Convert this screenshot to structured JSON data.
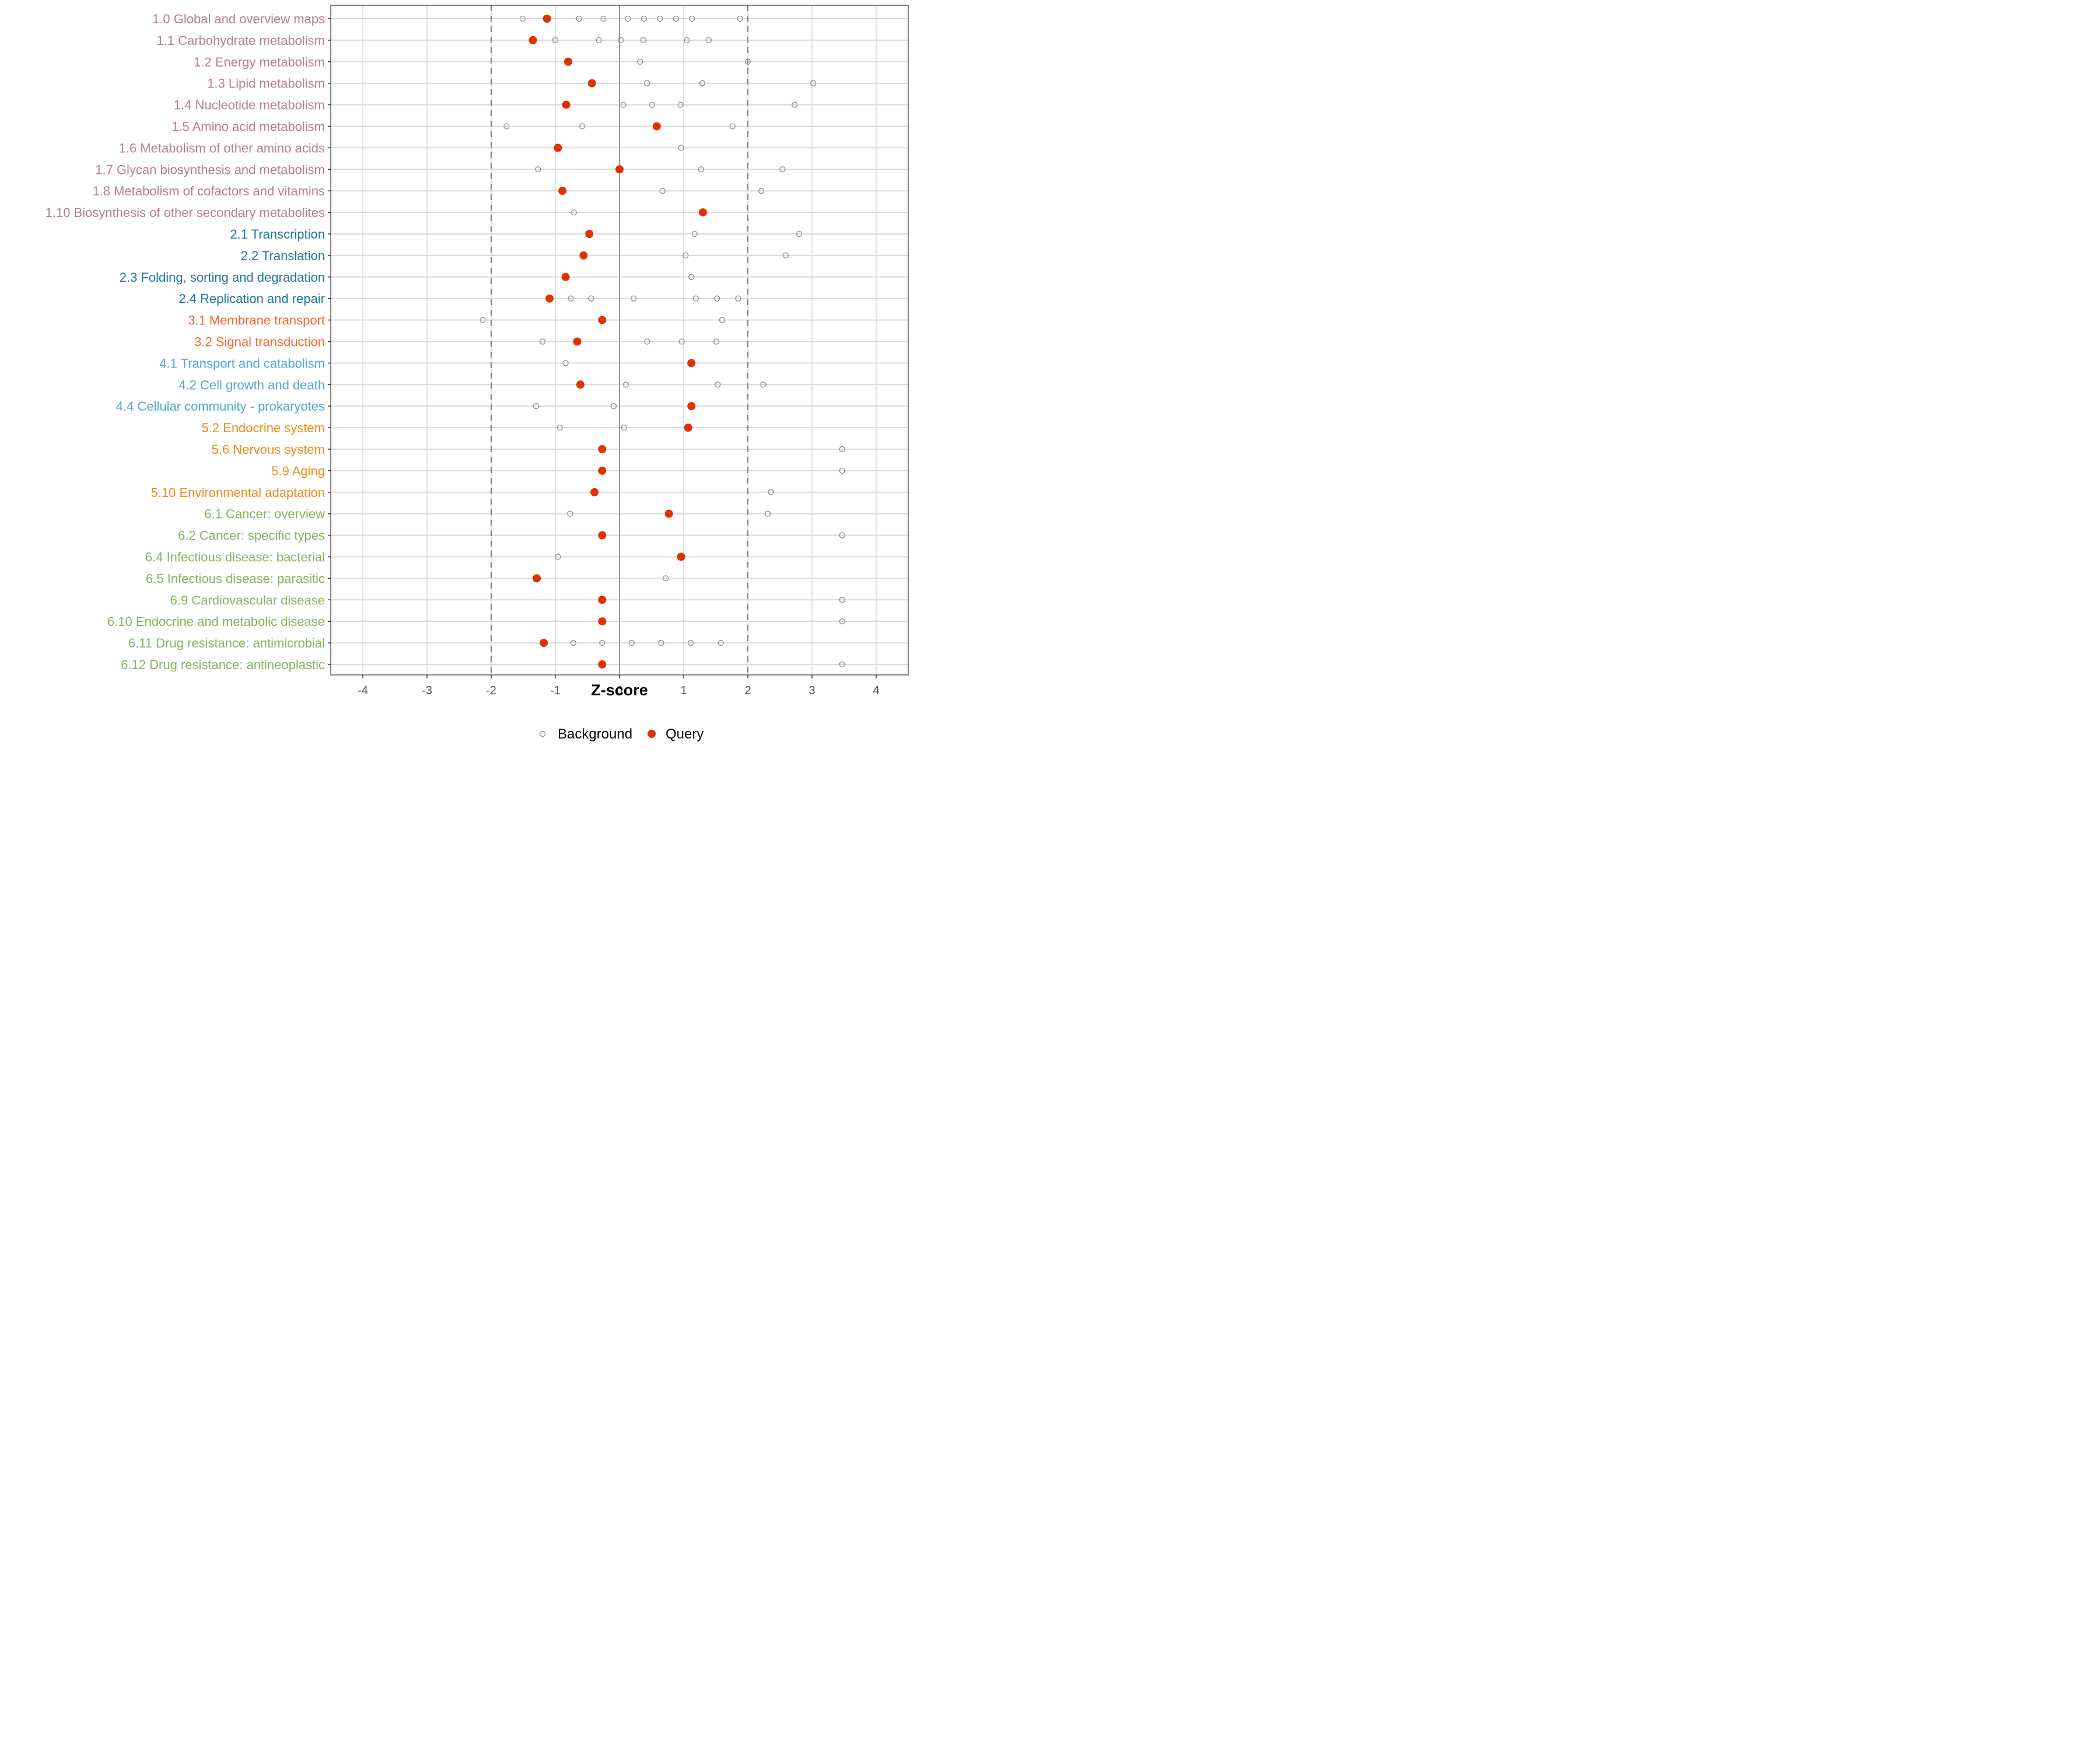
{
  "chart_data": {
    "type": "scatter",
    "title": "",
    "xlabel": "Z-score",
    "ylabel": "",
    "xlim": [
      -4.5,
      4.5
    ],
    "x_ticks": [
      -4,
      -3,
      -2,
      -1,
      0,
      1,
      2,
      3,
      4
    ],
    "x_tick_labels": [
      "-4",
      "-3",
      "-2",
      "-1",
      "0",
      "1",
      "2",
      "3",
      "4"
    ],
    "reference_lines": {
      "solid": [
        0
      ],
      "dashed": [
        -2,
        2
      ]
    },
    "grid": true,
    "legend": {
      "position": "bottom",
      "entries": [
        {
          "name": "Background",
          "style": "open-circle",
          "color": "#8c8c8c"
        },
        {
          "name": "Query",
          "style": "filled-circle",
          "color": "#dd3300"
        }
      ]
    },
    "group_colors": {
      "1": "#b57f8c",
      "2": "#22779e",
      "3": "#ee6a2c",
      "4": "#4ea6da",
      "5": "#f08c1a",
      "6": "#86b55a"
    },
    "rows": [
      {
        "label": "1.0 Global and overview maps",
        "group": "1",
        "query": -1.13,
        "background": [
          -1.51,
          -0.63,
          -0.25,
          0.13,
          0.38,
          0.63,
          0.88,
          1.13,
          1.88
        ]
      },
      {
        "label": "1.1 Carbohydrate metabolism",
        "group": "1",
        "query": -1.35,
        "background": [
          -1.0,
          -0.32,
          0.02,
          0.37,
          1.05,
          1.39
        ]
      },
      {
        "label": "1.2 Energy metabolism",
        "group": "1",
        "query": -0.8,
        "background": [
          0.32,
          2.0
        ]
      },
      {
        "label": "1.3 Lipid metabolism",
        "group": "1",
        "query": -0.43,
        "background": [
          0.43,
          1.29,
          3.02
        ]
      },
      {
        "label": "1.4 Nucleotide metabolism",
        "group": "1",
        "query": -0.83,
        "background": [
          0.06,
          0.51,
          0.95,
          2.73
        ]
      },
      {
        "label": "1.5 Amino acid metabolism",
        "group": "1",
        "query": 0.58,
        "background": [
          -1.76,
          -0.58,
          1.76
        ]
      },
      {
        "label": "1.6 Metabolism of other amino acids",
        "group": "1",
        "query": -0.96,
        "background": [
          0.96
        ]
      },
      {
        "label": "1.7 Glycan biosynthesis and metabolism",
        "group": "1",
        "query": 0.0,
        "background": [
          -1.27,
          1.27,
          2.54
        ]
      },
      {
        "label": "1.8 Metabolism of cofactors and vitamins",
        "group": "1",
        "query": -0.89,
        "background": [
          0.67,
          2.21
        ]
      },
      {
        "label": "1.10 Biosynthesis of other secondary metabolites",
        "group": "1",
        "query": 1.3,
        "background": [
          -0.71
        ]
      },
      {
        "label": "2.1 Transcription",
        "group": "2",
        "query": -0.47,
        "background": [
          1.17,
          2.8
        ]
      },
      {
        "label": "2.2 Translation",
        "group": "2",
        "query": -0.56,
        "background": [
          1.03,
          2.59
        ]
      },
      {
        "label": "2.3 Folding, sorting and degradation",
        "group": "2",
        "query": -0.84,
        "background": [
          1.12
        ]
      },
      {
        "label": "2.4 Replication and repair",
        "group": "2",
        "query": -1.09,
        "background": [
          -0.76,
          -0.44,
          0.22,
          1.19,
          1.52,
          1.85
        ]
      },
      {
        "label": "3.1 Membrane transport",
        "group": "3",
        "query": -0.27,
        "background": [
          -2.13,
          1.6
        ]
      },
      {
        "label": "3.2 Signal transduction",
        "group": "3",
        "query": -0.66,
        "background": [
          -1.2,
          0.43,
          0.97,
          1.51
        ]
      },
      {
        "label": "4.1 Transport and catabolism",
        "group": "4",
        "query": 1.12,
        "background": [
          -0.84
        ]
      },
      {
        "label": "4.2 Cell growth and death",
        "group": "4",
        "query": -0.61,
        "background": [
          0.1,
          1.53,
          2.24
        ]
      },
      {
        "label": "4.4 Cellular community - prokaryotes",
        "group": "4",
        "query": 1.12,
        "background": [
          -1.3,
          -0.09
        ]
      },
      {
        "label": "5.2 Endocrine system",
        "group": "5",
        "query": 1.07,
        "background": [
          -0.93,
          0.07
        ]
      },
      {
        "label": "5.6 Nervous system",
        "group": "5",
        "query": -0.27,
        "background": [
          3.47
        ]
      },
      {
        "label": "5.9 Aging",
        "group": "5",
        "query": -0.27,
        "background": [
          3.47
        ]
      },
      {
        "label": "5.10 Environmental adaptation",
        "group": "5",
        "query": -0.39,
        "background": [
          2.36
        ]
      },
      {
        "label": "6.1 Cancer: overview",
        "group": "6",
        "query": 0.77,
        "background": [
          -0.77,
          2.31
        ]
      },
      {
        "label": "6.2 Cancer: specific types",
        "group": "6",
        "query": -0.27,
        "background": [
          3.47
        ]
      },
      {
        "label": "6.4 Infectious disease: bacterial",
        "group": "6",
        "query": 0.96,
        "background": [
          -0.96
        ]
      },
      {
        "label": "6.5 Infectious disease: parasitic",
        "group": "6",
        "query": -1.29,
        "background": [
          0.72
        ]
      },
      {
        "label": "6.9 Cardiovascular disease",
        "group": "6",
        "query": -0.27,
        "background": [
          3.47
        ]
      },
      {
        "label": "6.10 Endocrine and metabolic disease",
        "group": "6",
        "query": -0.27,
        "background": [
          3.47
        ]
      },
      {
        "label": "6.11 Drug resistance: antimicrobial",
        "group": "6",
        "query": -1.18,
        "background": [
          -0.72,
          -0.27,
          0.19,
          0.65,
          1.11,
          1.58
        ]
      },
      {
        "label": "6.12 Drug resistance: antineoplastic",
        "group": "6",
        "query": -0.27,
        "background": [
          3.47
        ]
      }
    ]
  }
}
